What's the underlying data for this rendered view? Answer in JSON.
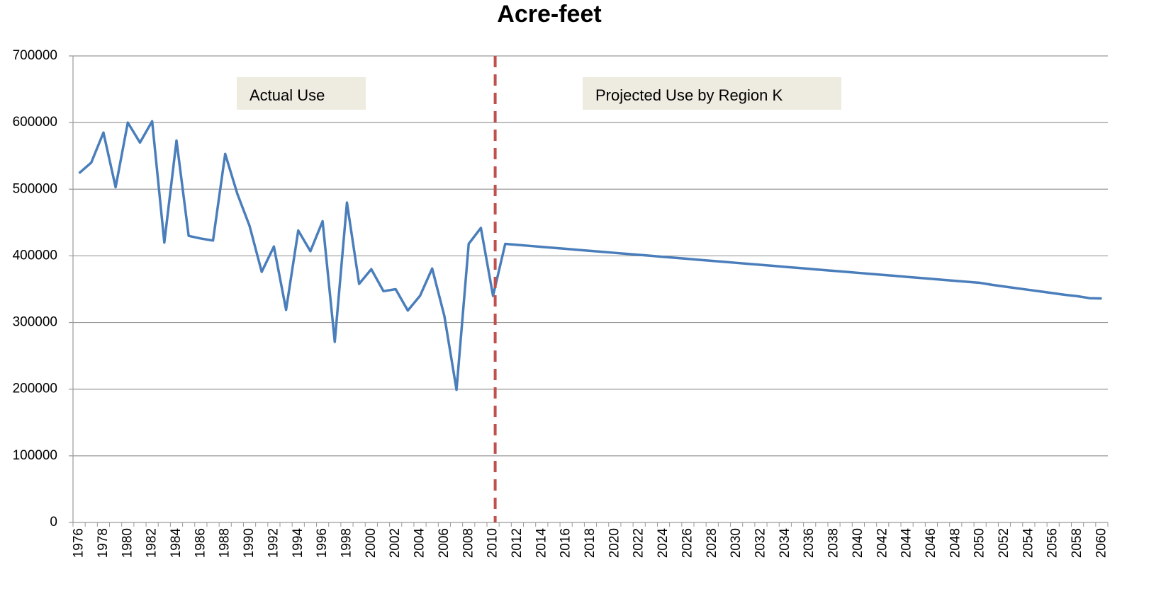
{
  "chart_data": {
    "type": "line",
    "title": "Acre-feet",
    "annotations": [
      "Actual Use",
      "Projected Use by Region K"
    ],
    "divider": 2010,
    "categories": [
      1976,
      null,
      1978,
      null,
      1980,
      null,
      1982,
      null,
      1984,
      null,
      1986,
      null,
      1988,
      null,
      1990,
      null,
      1992,
      null,
      1994,
      null,
      1996,
      null,
      1998,
      null,
      2000,
      null,
      2002,
      null,
      2004,
      null,
      2006,
      null,
      2008,
      null,
      2010,
      null,
      2012,
      null,
      2014,
      null,
      2016,
      null,
      2018,
      null,
      2020,
      null,
      2022,
      null,
      2024,
      null,
      2026,
      null,
      2028,
      null,
      2030,
      null,
      2032,
      null,
      2034,
      null,
      2036,
      null,
      2038,
      null,
      2040,
      null,
      2042,
      null,
      2044,
      null,
      2046,
      null,
      2048,
      null,
      2050,
      null,
      2052,
      null,
      2054,
      null,
      2056,
      null,
      2058,
      null,
      2060
    ],
    "series": [
      {
        "name": "Acre-feet",
        "color": "#4a7ebb",
        "values": [
          524000,
          540000,
          585000,
          503000,
          600000,
          570000,
          602000,
          420000,
          573000,
          430000,
          426000,
          423000,
          553000,
          493000,
          445000,
          376000,
          414000,
          319000,
          438000,
          407000,
          452000,
          271000,
          480000,
          358000,
          380000,
          347000,
          350000,
          318000,
          340000,
          381000,
          310000,
          199000,
          418000,
          442000,
          340000,
          418000,
          416500,
          415000,
          413500,
          412000,
          410500,
          409000,
          407500,
          406000,
          404500,
          403000,
          401500,
          400000,
          398500,
          397000,
          395500,
          394000,
          392500,
          391000,
          389500,
          388000,
          386500,
          385000,
          383500,
          382000,
          380500,
          379000,
          377500,
          376000,
          374500,
          373000,
          371500,
          370000,
          368500,
          367000,
          365500,
          364000,
          362500,
          361000,
          359500,
          356500,
          354000,
          351500,
          349000,
          346500,
          344000,
          341500,
          339500,
          336500,
          336000
        ]
      }
    ],
    "ylim": [
      0,
      700000
    ],
    "yticks": [
      0,
      100000,
      200000,
      300000,
      400000,
      500000,
      600000,
      700000
    ],
    "grid": true
  }
}
